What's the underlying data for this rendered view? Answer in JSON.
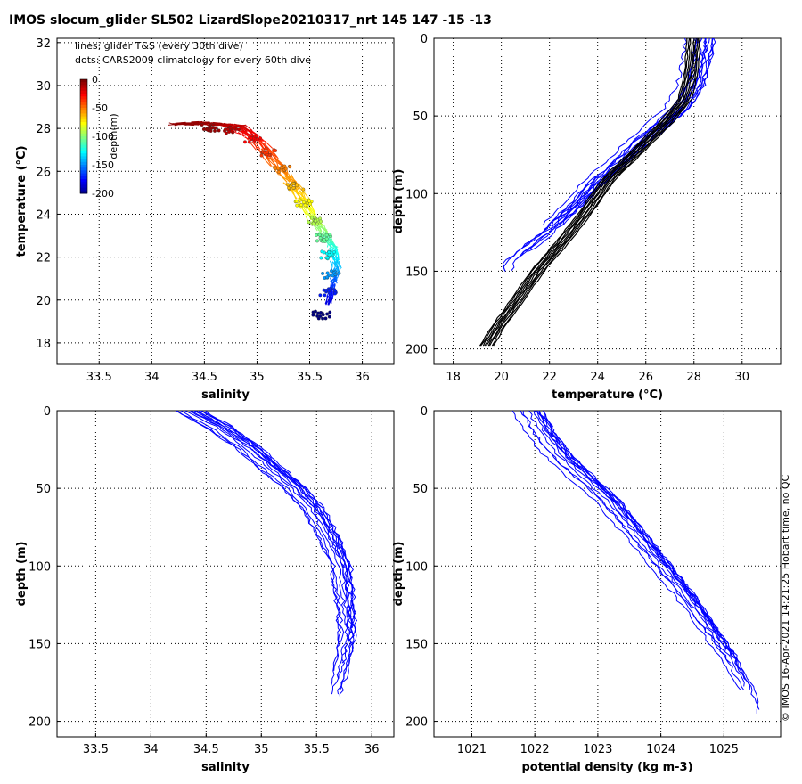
{
  "figure": {
    "title": "IMOS slocum_glider SL502 LizardSlope20210317_nrt 145  147  -15  -13",
    "credit": "© IMOS 16-Apr-2021 14:21:25 Hobart time, no QC",
    "line_color": "#0000ff",
    "profile_color": "#000000"
  },
  "chart_data": [
    {
      "type": "scatter",
      "title": "",
      "xlabel": "salinity",
      "ylabel": "temperature (°C)",
      "xlim": [
        33.1,
        36.3
      ],
      "ylim": [
        17,
        32.2
      ],
      "xticks": [
        "33.5",
        "34",
        "34.5",
        "35",
        "35.5",
        "36"
      ],
      "yticks": [
        "18",
        "20",
        "22",
        "24",
        "26",
        "28",
        "30",
        "32"
      ],
      "grid": true,
      "annotations": [
        "lines: glider T&S (every 30th dive)",
        "dots: CARS2009 climatology for every 60th dive"
      ],
      "colorbar": {
        "label": "depth(m)",
        "range": [
          -200,
          0
        ],
        "ticks": [
          "0",
          "-50",
          "-100",
          "-150",
          "-200"
        ]
      },
      "series": [
        {
          "style": "lines",
          "points": [
            {
              "x": 34.22,
              "y": 28.2,
              "depth": -3
            },
            {
              "x": 34.5,
              "y": 28.25,
              "depth": -5
            },
            {
              "x": 34.8,
              "y": 28.1,
              "depth": -15
            },
            {
              "x": 35.0,
              "y": 27.4,
              "depth": -30
            },
            {
              "x": 35.2,
              "y": 26.2,
              "depth": -48
            },
            {
              "x": 35.38,
              "y": 25.1,
              "depth": -62
            },
            {
              "x": 35.5,
              "y": 24.0,
              "depth": -80
            },
            {
              "x": 35.62,
              "y": 23.2,
              "depth": -100
            },
            {
              "x": 35.72,
              "y": 22.4,
              "depth": -120
            },
            {
              "x": 35.75,
              "y": 21.5,
              "depth": -140
            },
            {
              "x": 35.72,
              "y": 20.8,
              "depth": -160
            },
            {
              "x": 35.68,
              "y": 19.8,
              "depth": -185
            }
          ]
        },
        {
          "style": "dots",
          "points": [
            {
              "x": 34.55,
              "y": 28.0,
              "depth": -5
            },
            {
              "x": 34.75,
              "y": 27.9,
              "depth": -12
            },
            {
              "x": 34.95,
              "y": 27.5,
              "depth": -25
            },
            {
              "x": 35.1,
              "y": 26.9,
              "depth": -35
            },
            {
              "x": 35.25,
              "y": 26.1,
              "depth": -50
            },
            {
              "x": 35.35,
              "y": 25.3,
              "depth": -62
            },
            {
              "x": 35.45,
              "y": 24.5,
              "depth": -75
            },
            {
              "x": 35.55,
              "y": 23.7,
              "depth": -90
            },
            {
              "x": 35.62,
              "y": 22.9,
              "depth": -105
            },
            {
              "x": 35.68,
              "y": 22.1,
              "depth": -125
            },
            {
              "x": 35.7,
              "y": 21.2,
              "depth": -145
            },
            {
              "x": 35.68,
              "y": 20.4,
              "depth": -170
            },
            {
              "x": 35.62,
              "y": 19.3,
              "depth": -200
            }
          ]
        }
      ]
    },
    {
      "type": "line",
      "title": "",
      "xlabel": "temperature (°C)",
      "ylabel": "depth (m)",
      "xlim": [
        17.2,
        31.6
      ],
      "ylim": [
        0,
        210
      ],
      "y_inverted": true,
      "xticks": [
        "18",
        "20",
        "22",
        "24",
        "26",
        "28",
        "30"
      ],
      "yticks": [
        "0",
        "50",
        "100",
        "150",
        "200"
      ],
      "grid": true,
      "series": [
        {
          "style": "glider",
          "x": [
            28.3,
            28.2,
            27.9,
            27.3,
            26.6,
            25.8,
            24.8,
            23.7,
            22.8,
            21.8,
            21.0,
            20.2
          ],
          "y": [
            0,
            10,
            30,
            45,
            55,
            65,
            80,
            95,
            110,
            125,
            135,
            145
          ]
        },
        {
          "style": "climatology",
          "x": [
            28.0,
            27.9,
            27.6,
            26.8,
            25.5,
            24.5,
            23.6,
            22.6,
            21.5,
            20.6,
            19.9,
            19.3
          ],
          "y": [
            0,
            20,
            40,
            55,
            75,
            90,
            110,
            130,
            150,
            170,
            185,
            200
          ]
        }
      ]
    },
    {
      "type": "line",
      "title": "",
      "xlabel": "salinity",
      "ylabel": "depth (m)",
      "xlim": [
        33.15,
        36.2
      ],
      "ylim": [
        0,
        210
      ],
      "y_inverted": true,
      "xticks": [
        "33.5",
        "34",
        "34.5",
        "35",
        "35.5",
        "36"
      ],
      "yticks": [
        "0",
        "50",
        "100",
        "150",
        "200"
      ],
      "grid": true,
      "series": [
        {
          "style": "glider",
          "x": [
            34.35,
            34.6,
            34.9,
            35.1,
            35.3,
            35.45,
            35.6,
            35.72,
            35.75,
            35.78,
            35.72,
            35.65
          ],
          "y": [
            0,
            10,
            25,
            38,
            50,
            62,
            80,
            100,
            120,
            145,
            165,
            185
          ]
        }
      ]
    },
    {
      "type": "line",
      "title": "",
      "xlabel": "potential density (kg m-3)",
      "ylabel": "depth (m)",
      "xlim": [
        1020.4,
        1025.9
      ],
      "ylim": [
        0,
        210
      ],
      "y_inverted": true,
      "xticks": [
        "1021",
        "1022",
        "1023",
        "1024",
        "1025"
      ],
      "yticks": [
        "0",
        "50",
        "100",
        "150",
        "200"
      ],
      "grid": true,
      "series": [
        {
          "style": "glider",
          "x": [
            1021.9,
            1022.1,
            1022.4,
            1022.8,
            1023.2,
            1023.6,
            1024.0,
            1024.4,
            1024.75,
            1025.1,
            1025.3,
            1025.45
          ],
          "y": [
            0,
            15,
            30,
            45,
            60,
            80,
            100,
            120,
            140,
            160,
            175,
            188
          ]
        }
      ]
    }
  ]
}
